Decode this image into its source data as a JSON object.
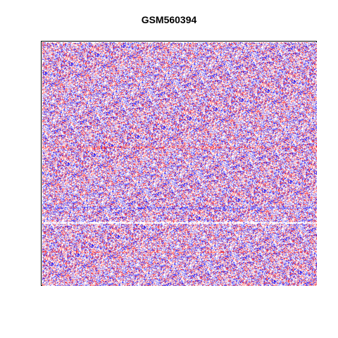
{
  "chart_data": {
    "type": "heatmap",
    "title": "GSM560394",
    "xlabel": "",
    "ylabel": "",
    "grid": false,
    "legend": "none",
    "colors": {
      "low": "#0000ff",
      "mid": "#ffffff",
      "high": "#ff0000",
      "background": "#ffffff",
      "frame": "#000000"
    },
    "value_distribution": {
      "blue_fraction": 0.3,
      "white_fraction": 0.42,
      "red_fraction": 0.28
    },
    "horizontal_bands": [
      {
        "y_fraction": 0.43,
        "tone": "red-dense"
      },
      {
        "y_fraction": 0.68,
        "tone": "blue-dense"
      },
      {
        "y_fraction": 0.74,
        "tone": "white-streak"
      },
      {
        "y_fraction": 0.86,
        "tone": "red-dense"
      }
    ]
  }
}
